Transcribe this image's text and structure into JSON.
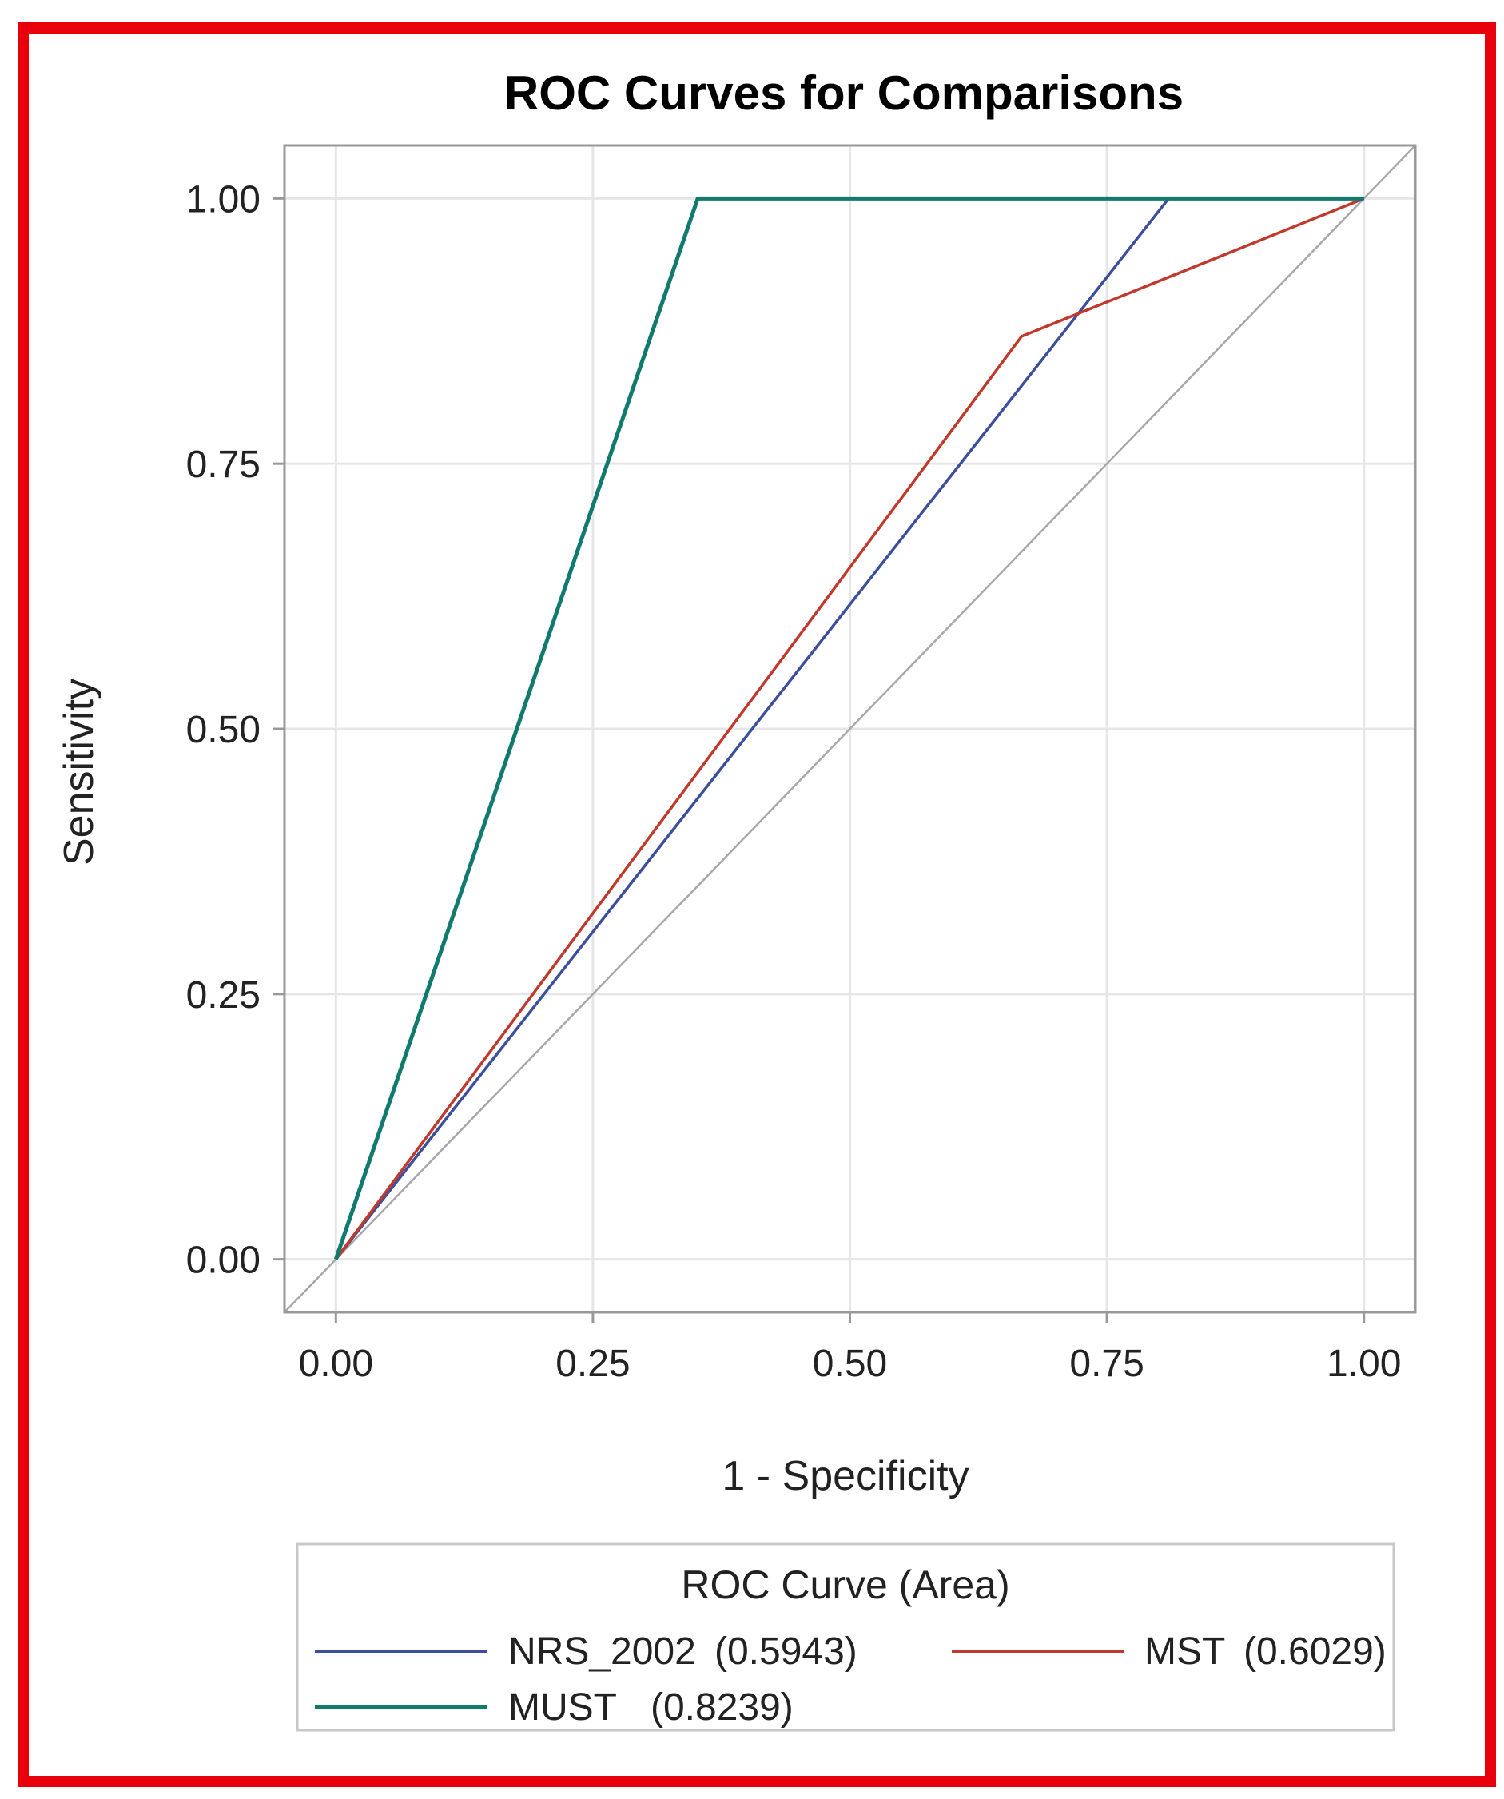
{
  "colors": {
    "frame_border": "#e8000b",
    "grid": "#e6e6e6",
    "axis": "#999999",
    "diagonal": "#a8a8a8"
  },
  "chart_data": {
    "type": "line",
    "title": "ROC Curves for Comparisons",
    "xlabel": "1 - Specificity",
    "ylabel": "Sensitivity",
    "xlim": [
      -0.05,
      1.05
    ],
    "ylim": [
      -0.05,
      1.05
    ],
    "xticks": [
      0.0,
      0.25,
      0.5,
      0.75,
      1.0
    ],
    "yticks": [
      0.0,
      0.25,
      0.5,
      0.75,
      1.0
    ],
    "xtick_labels": [
      "0.00",
      "0.25",
      "0.50",
      "0.75",
      "1.00"
    ],
    "ytick_labels": [
      "0.00",
      "0.25",
      "0.50",
      "0.75",
      "1.00"
    ],
    "grid": true,
    "reference_line": {
      "name": "chance diagonal",
      "x": [
        -0.05,
        1.05
      ],
      "y": [
        -0.05,
        1.05
      ],
      "color": "#a8a8a8"
    },
    "legend": {
      "title": "ROC Curve (Area)",
      "placement": "bottom"
    },
    "series": [
      {
        "name": "NRS_2002",
        "area": "(0.5943)",
        "color": "#3b4f9c",
        "x": [
          0.0,
          0.81,
          1.0
        ],
        "y": [
          0.0,
          1.0,
          1.0
        ]
      },
      {
        "name": "MST",
        "area": "(0.6029)",
        "color": "#c0392b",
        "x": [
          0.0,
          0.667,
          1.0
        ],
        "y": [
          0.0,
          0.87,
          1.0
        ]
      },
      {
        "name": "MUST",
        "area": "(0.8239)",
        "color": "#117a6f",
        "x": [
          0.0,
          0.352,
          1.0
        ],
        "y": [
          0.0,
          1.0,
          1.0
        ]
      }
    ]
  }
}
